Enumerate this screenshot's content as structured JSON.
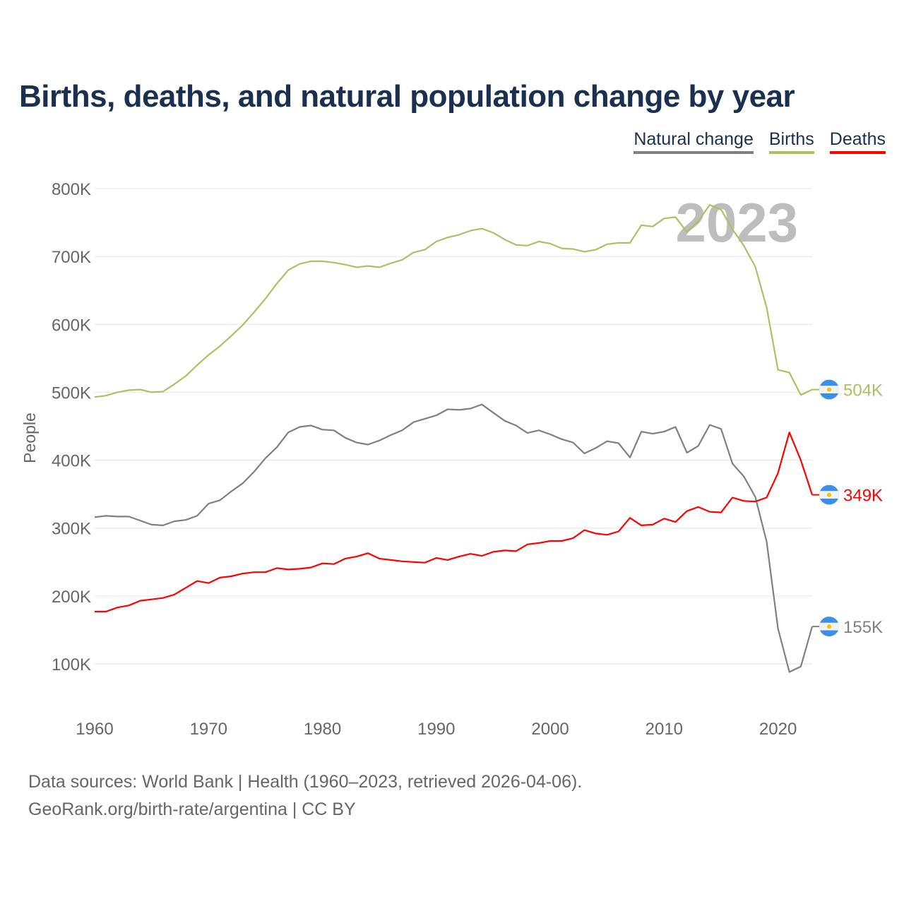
{
  "title": "Births, deaths, and natural population change by year",
  "legend": [
    {
      "label": "Natural change",
      "color": "#808080"
    },
    {
      "label": "Births",
      "color": "#adc064"
    },
    {
      "label": "Deaths",
      "color": "#ff0000"
    }
  ],
  "source": {
    "line1": "Data sources: World Bank | Health (1960–2023, retrieved 2026-04-06).",
    "line2": "GeoRank.org/birth-rate/argentina | CC BY"
  },
  "chart_data": {
    "type": "line",
    "title": "Births, deaths, and natural population change by year",
    "xlabel": "",
    "ylabel": "People",
    "year_watermark": "2023",
    "x_ticks": [
      1960,
      1970,
      1980,
      1990,
      2000,
      2010,
      2020
    ],
    "x_tick_labels": [
      "1960",
      "1970",
      "1980",
      "1990",
      "2000",
      "2010",
      "2020"
    ],
    "y_ticks": [
      100,
      200,
      300,
      400,
      500,
      600,
      700,
      800
    ],
    "y_tick_labels": [
      "100K",
      "200K",
      "300K",
      "400K",
      "500K",
      "600K",
      "700K",
      "800K"
    ],
    "xlim": [
      1960,
      2023
    ],
    "ylim": [
      30,
      810
    ],
    "units": "thousands of people",
    "grid": true,
    "legend_position": "top-right",
    "x_start": 1960,
    "series": [
      {
        "name": "Natural change",
        "color": "#808080",
        "end_label": "155K",
        "values": [
          316,
          318,
          317,
          317,
          311,
          305,
          304,
          310,
          312,
          318,
          336,
          341,
          354,
          366,
          383,
          403,
          419,
          441,
          449,
          451,
          445,
          444,
          433,
          426,
          423,
          429,
          437,
          444,
          456,
          461,
          466,
          475,
          474,
          476,
          482,
          470,
          458,
          451,
          440,
          444,
          438,
          431,
          426,
          410,
          418,
          428,
          425,
          404,
          442,
          439,
          442,
          449,
          411,
          421,
          452,
          446,
          395,
          376,
          346,
          280,
          152,
          88,
          96,
          155
        ]
      },
      {
        "name": "Births",
        "color": "#adc064",
        "end_label": "504K",
        "values": [
          493,
          495,
          500,
          503,
          504,
          500,
          501,
          512,
          524,
          540,
          555,
          568,
          583,
          599,
          618,
          638,
          660,
          680,
          689,
          693,
          693,
          691,
          688,
          684,
          686,
          684,
          690,
          695,
          706,
          710,
          722,
          728,
          732,
          738,
          741,
          735,
          725,
          717,
          716,
          722,
          719,
          712,
          711,
          707,
          710,
          718,
          720,
          720,
          746,
          744,
          756,
          758,
          736,
          752,
          776,
          769,
          740,
          716,
          685,
          625,
          533,
          529,
          496,
          504
        ]
      },
      {
        "name": "Deaths",
        "color": "#ff0000",
        "end_label": "349K",
        "values": [
          177,
          177,
          183,
          186,
          193,
          195,
          197,
          202,
          212,
          222,
          219,
          227,
          229,
          233,
          235,
          235,
          241,
          239,
          240,
          242,
          248,
          247,
          255,
          258,
          263,
          255,
          253,
          251,
          250,
          249,
          256,
          253,
          258,
          262,
          259,
          265,
          267,
          266,
          276,
          278,
          281,
          281,
          285,
          297,
          292,
          290,
          295,
          315,
          304,
          305,
          314,
          309,
          325,
          331,
          324,
          323,
          345,
          340,
          339,
          345,
          381,
          441,
          400,
          349
        ]
      }
    ]
  }
}
